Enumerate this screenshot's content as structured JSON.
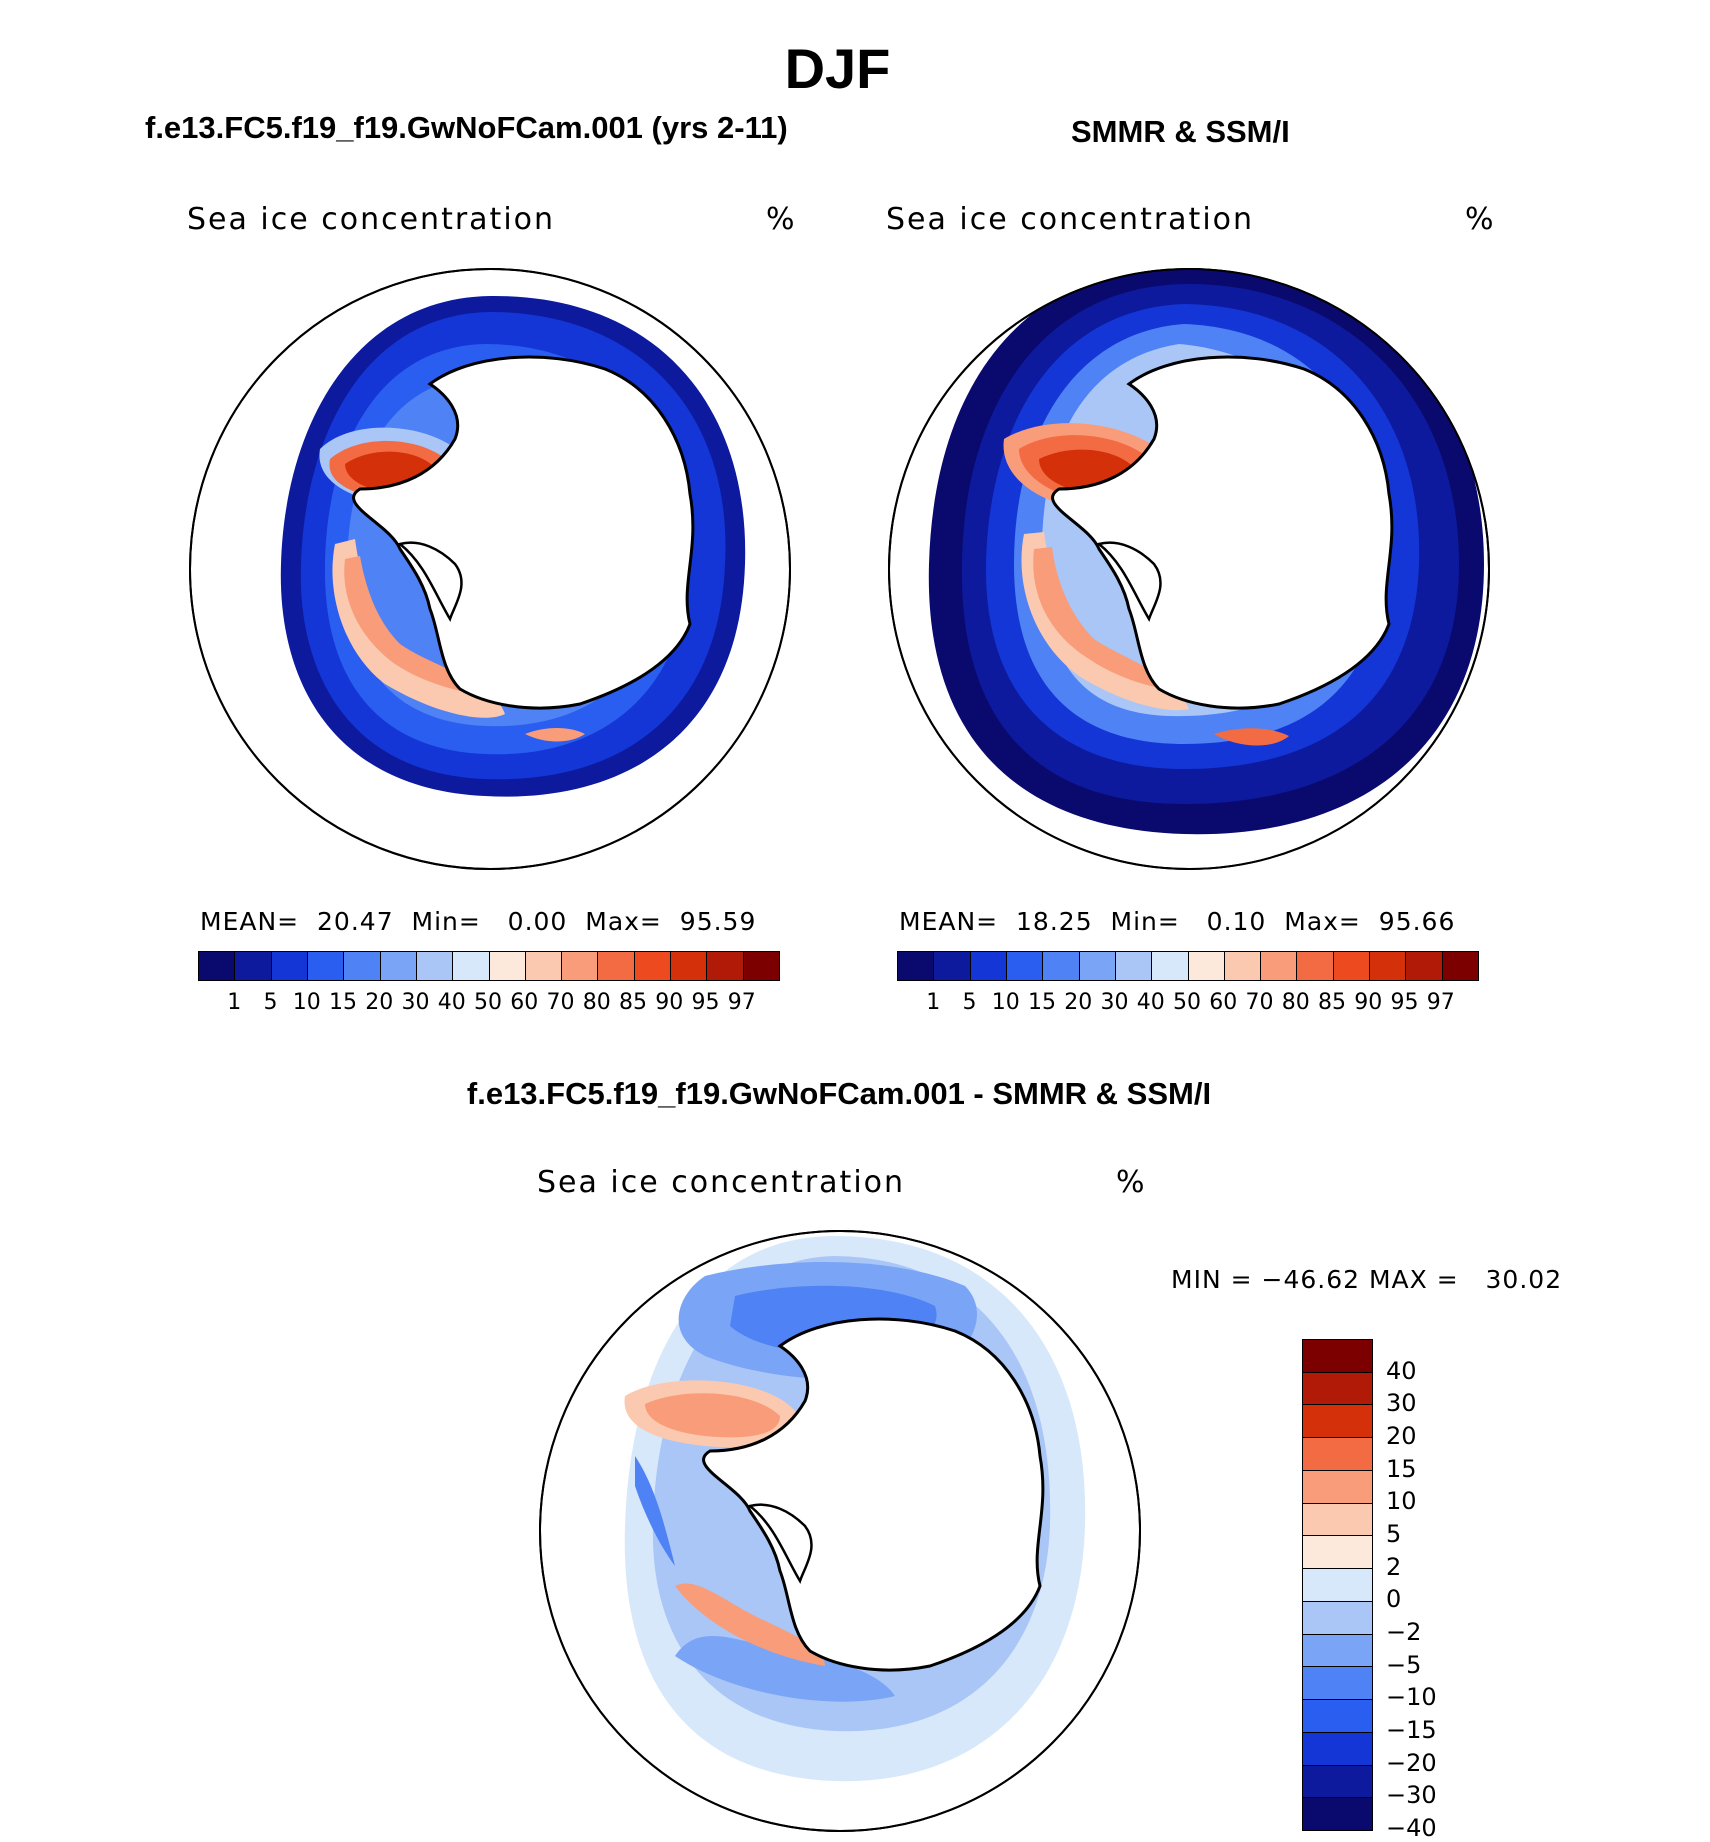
{
  "title": "DJF",
  "colors": {
    "seq": [
      "#0a0a6e",
      "#0d1a9e",
      "#1436d6",
      "#2a5ef0",
      "#4f82f4",
      "#7aa4f6",
      "#a9c6f7",
      "#d8e8fb",
      "#fde9dc",
      "#fbc9b0",
      "#f99c79",
      "#f26b43",
      "#ee4a1f",
      "#d4300a",
      "#b21a08",
      "#7d0000"
    ],
    "diff": [
      "#7d0000",
      "#b21a08",
      "#d4300a",
      "#f26b43",
      "#f99c79",
      "#fbc9b0",
      "#fde9dc",
      "#d8e8fb",
      "#a9c6f7",
      "#7aa4f6",
      "#4f82f4",
      "#2a5ef0",
      "#1436d6",
      "#0d1a9e",
      "#0a0a6e"
    ],
    "land": "#ffffff"
  },
  "panels": {
    "model": {
      "title": "f.e13.FC5.f19_f19.GwNoFCam.001 (yrs 2-11)",
      "variable": "Sea ice concentration",
      "unit": "%",
      "mean_label": "MEAN=",
      "mean": "20.47",
      "min_label": "Min=",
      "min": "0.00",
      "max_label": "Max=",
      "max": "95.59"
    },
    "obs": {
      "title": "SMMR & SSM/I",
      "variable": "Sea ice concentration",
      "unit": "%",
      "mean_label": "MEAN=",
      "mean": "18.25",
      "min_label": "Min=",
      "min": "0.10",
      "max_label": "Max=",
      "max": "95.66"
    },
    "diff": {
      "title": "f.e13.FC5.f19_f19.GwNoFCam.001 - SMMR & SSM/I",
      "variable": "Sea ice concentration",
      "unit": "%",
      "min_label": "MIN =",
      "min": "−46.62",
      "max_label": "MAX =",
      "max": "30.02"
    }
  },
  "colorbar_levels": [
    "1",
    "5",
    "10",
    "15",
    "20",
    "30",
    "40",
    "50",
    "60",
    "70",
    "80",
    "85",
    "90",
    "95",
    "97"
  ],
  "diff_levels": [
    "40",
    "30",
    "20",
    "15",
    "10",
    "5",
    "2",
    "0",
    "−2",
    "−5",
    "−10",
    "−15",
    "−20",
    "−30",
    "−40"
  ]
}
